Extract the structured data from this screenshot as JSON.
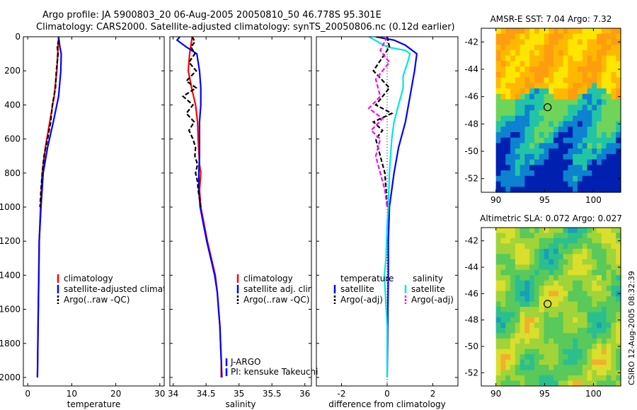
{
  "header": {
    "line1": "Argo profile: JA 5900803_20 06-Aug-2005 20050810_50 46.778S 95.301E",
    "line2": "Climatology: CARS2000. Satellite-adjusted climatology: synTS_20050806.nc (0.12d earlier)"
  },
  "side_label": "CSIRO 12-Aug-2005 08:32:39",
  "chart_data": [
    {
      "id": "temperature",
      "type": "line",
      "xlabel": "temperature",
      "xlim": [
        -1,
        31
      ],
      "xticks": [
        0,
        10,
        20,
        30
      ],
      "ylim": [
        2050,
        0
      ],
      "yticks": [
        0,
        200,
        400,
        600,
        800,
        1000,
        1200,
        1400,
        1600,
        1800,
        2000
      ],
      "show_yticklabels": true,
      "series": [
        {
          "name": "climatology",
          "color": "#ff0000",
          "dash": "",
          "points": [
            [
              7.0,
              0
            ],
            [
              6.8,
              100
            ],
            [
              6.6,
              200
            ],
            [
              6.0,
              350
            ],
            [
              5.0,
              500
            ],
            [
              4.0,
              650
            ],
            [
              3.3,
              800
            ],
            [
              2.9,
              1000
            ],
            [
              2.6,
              1200
            ],
            [
              2.5,
              1400
            ],
            [
              2.4,
              1600
            ],
            [
              2.3,
              1800
            ],
            [
              2.2,
              2000
            ]
          ]
        },
        {
          "name": "satellite-adjusted climatology",
          "color": "#0000ff",
          "dash": "",
          "points": [
            [
              7.0,
              0
            ],
            [
              7.3,
              60
            ],
            [
              7.6,
              100
            ],
            [
              7.5,
              200
            ],
            [
              7.0,
              350
            ],
            [
              5.8,
              500
            ],
            [
              4.5,
              650
            ],
            [
              3.5,
              800
            ],
            [
              3.0,
              1000
            ],
            [
              2.6,
              1200
            ],
            [
              2.5,
              1400
            ],
            [
              2.4,
              1600
            ],
            [
              2.3,
              1800
            ],
            [
              2.2,
              2000
            ]
          ]
        },
        {
          "name": "Argo(..raw -QC)",
          "color": "#000000",
          "dash": "6,3",
          "points": [
            [
              7.0,
              20
            ],
            [
              6.7,
              60
            ],
            [
              6.9,
              100
            ],
            [
              6.5,
              200
            ],
            [
              6.3,
              300
            ],
            [
              5.6,
              400
            ],
            [
              5.2,
              500
            ],
            [
              4.5,
              600
            ],
            [
              3.7,
              700
            ],
            [
              3.3,
              800
            ],
            [
              3.0,
              900
            ],
            [
              2.8,
              1000
            ]
          ]
        }
      ],
      "legend": {
        "items": [
          {
            "label": "climatology",
            "color": "#ff0000",
            "dash": ""
          },
          {
            "label": "satellite-adjusted climatology",
            "color": "#0000ff",
            "dash": ""
          },
          {
            "label": "Argo(..raw -QC)",
            "color": "#000000",
            "dash": "3,2"
          }
        ]
      }
    },
    {
      "id": "salinity",
      "type": "line",
      "xlabel": "salinity",
      "xlim": [
        33.95,
        36.1
      ],
      "xticks": [
        34,
        34.5,
        35,
        35.5,
        36
      ],
      "ylim": [
        2050,
        0
      ],
      "yticks": [
        0,
        200,
        400,
        600,
        800,
        1000,
        1200,
        1400,
        1600,
        1800,
        2000
      ],
      "show_yticklabels": false,
      "series": [
        {
          "name": "climatology",
          "color": "#ff0000",
          "dash": "",
          "points": [
            [
              34.29,
              0
            ],
            [
              34.27,
              50
            ],
            [
              34.25,
              100
            ],
            [
              34.23,
              200
            ],
            [
              34.28,
              300
            ],
            [
              34.34,
              400
            ],
            [
              34.37,
              500
            ],
            [
              34.38,
              600
            ],
            [
              34.4,
              750
            ],
            [
              34.42,
              800
            ],
            [
              34.4,
              900
            ],
            [
              34.42,
              1000
            ],
            [
              34.47,
              1100
            ],
            [
              34.52,
              1200
            ],
            [
              34.58,
              1300
            ],
            [
              34.64,
              1400
            ],
            [
              34.67,
              1500
            ],
            [
              34.69,
              1600
            ],
            [
              34.71,
              1700
            ],
            [
              34.72,
              1800
            ],
            [
              34.73,
              1900
            ],
            [
              34.73,
              2000
            ]
          ]
        },
        {
          "name": "satellite adj. clim.",
          "color": "#0000ff",
          "dash": "",
          "points": [
            [
              34.1,
              0
            ],
            [
              34.06,
              20
            ],
            [
              34.2,
              60
            ],
            [
              34.36,
              100
            ],
            [
              34.4,
              200
            ],
            [
              34.42,
              300
            ],
            [
              34.42,
              400
            ],
            [
              34.4,
              500
            ],
            [
              34.4,
              600
            ],
            [
              34.4,
              700
            ],
            [
              34.39,
              800
            ],
            [
              34.39,
              900
            ],
            [
              34.41,
              1000
            ],
            [
              34.46,
              1100
            ],
            [
              34.51,
              1200
            ],
            [
              34.57,
              1300
            ],
            [
              34.63,
              1400
            ],
            [
              34.67,
              1500
            ],
            [
              34.69,
              1600
            ],
            [
              34.71,
              1700
            ],
            [
              34.72,
              1800
            ],
            [
              34.73,
              1900
            ],
            [
              34.74,
              2000
            ]
          ]
        },
        {
          "name": "Argo(..raw -QC)",
          "color": "#000000",
          "dash": "6,3",
          "points": [
            [
              34.29,
              0
            ],
            [
              34.33,
              30
            ],
            [
              34.27,
              60
            ],
            [
              34.33,
              100
            ],
            [
              34.24,
              150
            ],
            [
              34.35,
              200
            ],
            [
              34.2,
              260
            ],
            [
              34.35,
              300
            ],
            [
              34.15,
              350
            ],
            [
              34.3,
              400
            ],
            [
              34.2,
              450
            ],
            [
              34.32,
              500
            ],
            [
              34.24,
              550
            ],
            [
              34.3,
              600
            ],
            [
              34.34,
              650
            ],
            [
              34.33,
              700
            ],
            [
              34.37,
              750
            ],
            [
              34.34,
              800
            ],
            [
              34.37,
              850
            ],
            [
              34.38,
              900
            ],
            [
              34.4,
              950
            ],
            [
              34.42,
              1000
            ]
          ]
        }
      ],
      "legend": {
        "items": [
          {
            "label": "climatology",
            "color": "#ff0000",
            "dash": ""
          },
          {
            "label": "satellite adj. clim.",
            "color": "#0000ff",
            "dash": ""
          },
          {
            "label": "Argo(..raw -QC)",
            "color": "#000000",
            "dash": "3,2"
          }
        ]
      },
      "annotations": [
        "J-ARGO",
        "PI: kensuke Takeuchi"
      ]
    },
    {
      "id": "difference",
      "type": "line",
      "xlabel": "difference from climatology",
      "xlim": [
        -3.1,
        3.1
      ],
      "xticks": [
        -2,
        0,
        2
      ],
      "ylim": [
        2050,
        0
      ],
      "yticks": [
        0,
        200,
        400,
        600,
        800,
        1000,
        1200,
        1400,
        1600,
        1800,
        2000
      ],
      "show_yticklabels": false,
      "zero_line": true,
      "series": [
        {
          "name": "temperature satellite",
          "color": "#0000ff",
          "dash": "",
          "points": [
            [
              -0.5,
              0
            ],
            [
              0.3,
              20
            ],
            [
              0.8,
              50
            ],
            [
              1.3,
              100
            ],
            [
              1.2,
              200
            ],
            [
              1.0,
              350
            ],
            [
              0.8,
              500
            ],
            [
              0.5,
              650
            ],
            [
              0.3,
              800
            ],
            [
              0.1,
              1000
            ],
            [
              0.05,
              1200
            ],
            [
              0.05,
              1400
            ],
            [
              0.03,
              1600
            ],
            [
              0.02,
              1800
            ],
            [
              0.0,
              2000
            ]
          ]
        },
        {
          "name": "salinity satellite",
          "color": "#00e5e5",
          "dash": "",
          "points": [
            [
              -0.8,
              0
            ],
            [
              0.0,
              60
            ],
            [
              0.8,
              80
            ],
            [
              1.0,
              100
            ],
            [
              0.9,
              150
            ],
            [
              0.7,
              230
            ],
            [
              0.7,
              300
            ],
            [
              0.5,
              400
            ],
            [
              0.3,
              500
            ],
            [
              0.2,
              600
            ],
            [
              0.15,
              700
            ],
            [
              0.1,
              800
            ],
            [
              0.05,
              1000
            ],
            [
              0.0,
              1100
            ],
            [
              -0.05,
              1300
            ],
            [
              -0.12,
              1400
            ],
            [
              -0.08,
              1500
            ],
            [
              0.0,
              1700
            ],
            [
              0.0,
              2000
            ]
          ]
        },
        {
          "name": "temperature Argo(-adj)",
          "color": "#000000",
          "dash": "6,3",
          "points": [
            [
              0.0,
              0
            ],
            [
              0.1,
              60
            ],
            [
              -0.6,
              200
            ],
            [
              0.1,
              300
            ],
            [
              -0.5,
              400
            ],
            [
              0.2,
              450
            ],
            [
              -0.6,
              500
            ],
            [
              -0.2,
              550
            ],
            [
              -0.5,
              600
            ],
            [
              -0.3,
              700
            ],
            [
              -0.1,
              800
            ],
            [
              -0.05,
              900
            ],
            [
              0.0,
              1000
            ]
          ]
        },
        {
          "name": "salinity Argo(-adj)",
          "color": "#ff00ff",
          "dash": "6,3",
          "points": [
            [
              0.0,
              0
            ],
            [
              -0.3,
              80
            ],
            [
              0.1,
              150
            ],
            [
              -0.5,
              250
            ],
            [
              -0.3,
              350
            ],
            [
              -0.8,
              420
            ],
            [
              -0.2,
              480
            ],
            [
              -0.7,
              550
            ],
            [
              -0.3,
              600
            ],
            [
              -0.5,
              700
            ],
            [
              -0.3,
              800
            ],
            [
              -0.1,
              900
            ],
            [
              0.0,
              1000
            ]
          ]
        }
      ],
      "legend": {
        "headers": [
          "temperature",
          "salinity"
        ],
        "items": [
          {
            "label": "satellite",
            "color": "#0000ff",
            "dash": ""
          },
          {
            "label": "satellite",
            "color": "#00e5e5",
            "dash": ""
          },
          {
            "label": "Argo(-adj)",
            "color": "#000000",
            "dash": "3,2"
          },
          {
            "label": "Argo(-adj)",
            "color": "#ff00ff",
            "dash": "3,2"
          }
        ]
      }
    },
    {
      "id": "sst-map",
      "type": "heatmap",
      "title": "AMSR-E SST: 7.04 Argo: 7.32",
      "xlim": [
        88.5,
        102.8
      ],
      "ylim": [
        -53,
        -41
      ],
      "xticks": [
        90,
        95,
        100
      ],
      "yticks": [
        -42,
        -44,
        -46,
        -48,
        -50,
        -52
      ],
      "marker": {
        "lon": 95.301,
        "lat": -46.778
      },
      "colors": [
        "#ffe600",
        "#ffb800",
        "#ff9d10",
        "#6fd45a",
        "#22c4a6",
        "#0c82d0",
        "#0020b0"
      ]
    },
    {
      "id": "sla-map",
      "type": "heatmap",
      "title": "Altimetric SLA: 0.072 Argo: 0.027",
      "xlim": [
        88.5,
        102.8
      ],
      "ylim": [
        -53,
        -41
      ],
      "xticks": [
        90,
        95,
        100
      ],
      "yticks": [
        -42,
        -44,
        -46,
        -48,
        -50,
        -52
      ],
      "marker": {
        "lon": 95.301,
        "lat": -46.778
      },
      "colors": [
        "#1aa0b4",
        "#2cbf8e",
        "#58c95a",
        "#a0d438",
        "#d9df2c",
        "#f5ad2c"
      ]
    }
  ]
}
